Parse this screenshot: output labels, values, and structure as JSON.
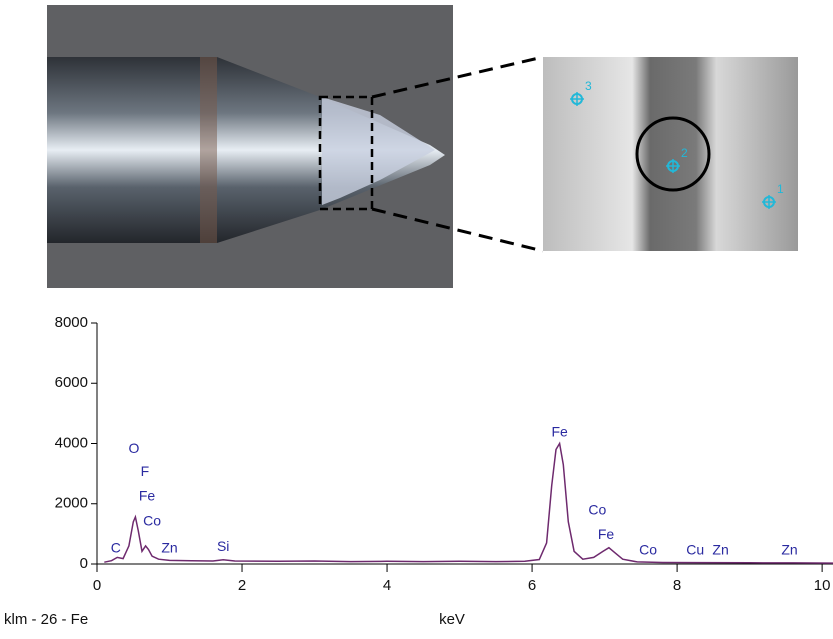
{
  "sem_markers": [
    "3",
    "2",
    "1"
  ],
  "chart_data": {
    "type": "line",
    "xlabel": "keV",
    "footnote": "klm - 26 - Fe",
    "xlim": [
      0,
      10.15
    ],
    "ylim": [
      0,
      8000
    ],
    "xticks": [
      0,
      2,
      4,
      6,
      8,
      10
    ],
    "yticks": [
      0,
      2000,
      4000,
      6000,
      8000
    ],
    "series": [
      {
        "color": "#6e2a6e",
        "x": [
          0.1,
          0.2,
          0.28,
          0.36,
          0.44,
          0.5,
          0.53,
          0.57,
          0.62,
          0.67,
          0.71,
          0.76,
          0.85,
          1.0,
          1.3,
          1.6,
          1.74,
          1.9,
          2.5,
          3.0,
          3.5,
          4.0,
          4.5,
          5.0,
          5.5,
          5.9,
          6.1,
          6.2,
          6.27,
          6.33,
          6.38,
          6.43,
          6.5,
          6.58,
          6.7,
          6.85,
          6.98,
          7.06,
          7.14,
          7.25,
          7.45,
          7.8,
          8.3,
          9.0,
          9.6,
          10.15
        ],
        "values": [
          60,
          110,
          220,
          180,
          600,
          1400,
          1560,
          1100,
          420,
          600,
          480,
          260,
          160,
          120,
          110,
          100,
          140,
          100,
          90,
          100,
          80,
          90,
          80,
          90,
          80,
          90,
          150,
          700,
          2600,
          3800,
          4000,
          3300,
          1400,
          420,
          160,
          220,
          420,
          540,
          380,
          160,
          70,
          50,
          45,
          40,
          35,
          30
        ]
      }
    ],
    "annotations": [
      {
        "text": "C",
        "x": 0.26,
        "y": 500
      },
      {
        "text": "O",
        "x": 0.51,
        "y": 3800
      },
      {
        "text": "F",
        "x": 0.66,
        "y": 3050
      },
      {
        "text": "Fe",
        "x": 0.69,
        "y": 2230
      },
      {
        "text": "Co",
        "x": 0.76,
        "y": 1400
      },
      {
        "text": "Zn",
        "x": 1.0,
        "y": 500
      },
      {
        "text": "Si",
        "x": 1.74,
        "y": 560
      },
      {
        "text": "Fe",
        "x": 6.38,
        "y": 4350
      },
      {
        "text": "Co",
        "x": 6.9,
        "y": 1760
      },
      {
        "text": "Fe",
        "x": 7.02,
        "y": 960
      },
      {
        "text": "Co",
        "x": 7.6,
        "y": 430
      },
      {
        "text": "Cu",
        "x": 8.25,
        "y": 430
      },
      {
        "text": "Zn",
        "x": 8.6,
        "y": 430
      },
      {
        "text": "Zn",
        "x": 9.55,
        "y": 430
      }
    ]
  }
}
